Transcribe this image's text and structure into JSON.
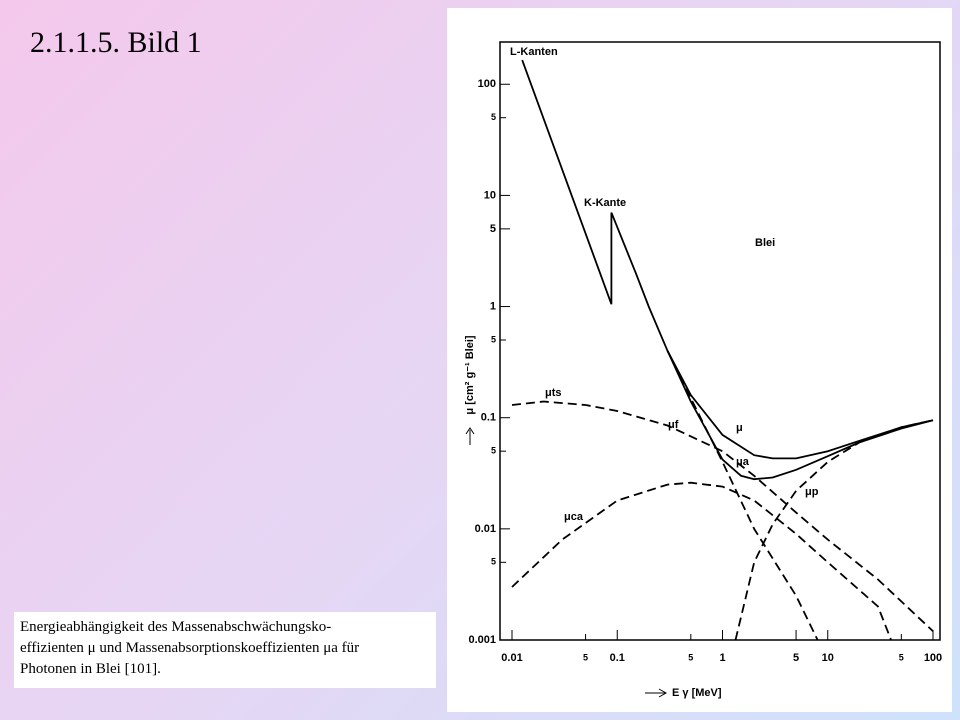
{
  "slide_title": "2.1.1.5.  Bild 1",
  "caption": [
    "Energieabhängigkeit des Massenabschwächungsko-",
    "effizienten μ und Massenabsorptionskoeffizienten μa für",
    "Photonen in Blei [101]."
  ],
  "chart_data": {
    "type": "line",
    "x_label": "E γ [MeV]",
    "y_label": "μ [cm² g⁻¹ Blei]",
    "annotations": [
      "L-Kanten",
      "K-Kante",
      "Blei"
    ],
    "log_x": true,
    "log_y": true,
    "xlim": [
      0.01,
      100
    ],
    "ylim": [
      0.001,
      240
    ],
    "xticks": [
      0.01,
      {
        "value": 0.05,
        "label": "5"
      },
      0.1,
      {
        "value": 0.5,
        "label": "5"
      },
      1,
      5,
      10,
      {
        "value": 50,
        "label": "5"
      },
      100
    ],
    "yticks": [
      0.001,
      {
        "value": 0.005,
        "label": "5"
      },
      0.01,
      {
        "value": 0.05,
        "label": "5"
      },
      0.1,
      {
        "value": 0.5,
        "label": "5"
      },
      1,
      5,
      10,
      {
        "value": 50,
        "label": "5"
      },
      100
    ],
    "series": [
      {
        "name": "μ",
        "color": "#000000",
        "dash": false,
        "x": [
          0.0125,
          0.088,
          0.088,
          0.15,
          0.2,
          0.3,
          0.5,
          1,
          2,
          3,
          5,
          10,
          20,
          50,
          100
        ],
        "values": [
          165,
          1.05,
          7,
          2.0,
          0.99,
          0.4,
          0.16,
          0.07,
          0.046,
          0.043,
          0.043,
          0.05,
          0.062,
          0.082,
          0.095
        ]
      },
      {
        "name": "μa",
        "color": "#000000",
        "dash": false,
        "x": [
          0.3,
          0.5,
          1,
          1.5,
          2,
          3,
          5,
          10,
          20,
          50,
          100
        ],
        "values": [
          0.4,
          0.14,
          0.042,
          0.03,
          0.028,
          0.029,
          0.034,
          0.045,
          0.06,
          0.08,
          0.095
        ]
      },
      {
        "name": "μts",
        "color": "#000000",
        "dash": true,
        "x": [
          0.01,
          0.02,
          0.05,
          0.1,
          0.3,
          1,
          2,
          5,
          10,
          30,
          100
        ],
        "values": [
          0.13,
          0.14,
          0.13,
          0.115,
          0.085,
          0.05,
          0.03,
          0.014,
          0.008,
          0.0035,
          0.0012
        ]
      },
      {
        "name": "μf",
        "color": "#000000",
        "dash": true,
        "x": [
          0.3,
          0.5,
          1,
          2,
          5,
          8
        ],
        "values": [
          0.4,
          0.15,
          0.04,
          0.01,
          0.0025,
          0.001
        ]
      },
      {
        "name": "μca",
        "color": "#000000",
        "dash": true,
        "x": [
          0.01,
          0.03,
          0.1,
          0.3,
          0.5,
          1,
          2,
          5,
          10,
          30,
          40
        ],
        "values": [
          0.003,
          0.008,
          0.018,
          0.025,
          0.026,
          0.024,
          0.018,
          0.009,
          0.005,
          0.002,
          0.001
        ]
      },
      {
        "name": "μp",
        "color": "#000000",
        "dash": true,
        "x": [
          1.33,
          2,
          3,
          5,
          10,
          20,
          50,
          100
        ],
        "values": [
          0.001,
          0.005,
          0.011,
          0.022,
          0.04,
          0.06,
          0.082,
          0.095
        ]
      }
    ]
  }
}
